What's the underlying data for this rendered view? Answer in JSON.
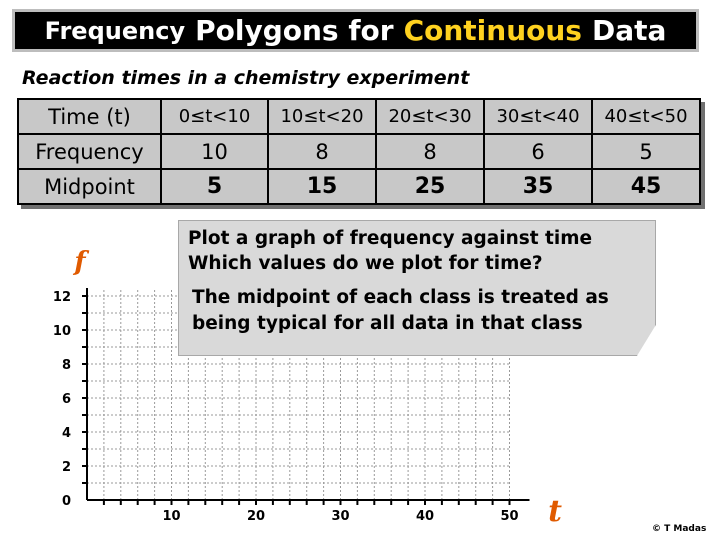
{
  "title": {
    "part1": "Frequency",
    "part2": "Polygons for",
    "part3": "Continuous",
    "part4": "Data"
  },
  "subtitle": "Reaction times in a chemistry experiment",
  "table": {
    "time_label": "Time (t)",
    "time_classes": [
      "0≤t<10",
      "10≤t<20",
      "20≤t<30",
      "30≤t<40",
      "40≤t<50"
    ],
    "frequency_label": "Frequency",
    "frequencies": [
      "10",
      "8",
      "8",
      "6",
      "5"
    ],
    "midpoint_label": "Midpoint",
    "midpoints": [
      "5",
      "15",
      "25",
      "35",
      "45"
    ]
  },
  "note": {
    "line1": "Plot a graph of frequency against time",
    "line2": "Which values do we plot for time?",
    "line3": "The midpoint of each class is treated as",
    "line4": "being typical for all data in that class"
  },
  "chart_data": {
    "type": "line",
    "xlabel": "t",
    "ylabel": "f",
    "xlim": [
      0,
      50
    ],
    "ylim": [
      0,
      12
    ],
    "x_ticks": [
      "10",
      "20",
      "30",
      "40",
      "50"
    ],
    "y_ticks": [
      "0",
      "2",
      "4",
      "6",
      "8",
      "10",
      "12"
    ],
    "grid": true,
    "series": []
  },
  "copyright": "© T Madas",
  "colors": {
    "title_bg": "#000000",
    "title_text": "#ffffff",
    "title_highlight": "#ffd21f",
    "table_bg": "#c8c8c8",
    "note_bg": "#d9d9d9",
    "grid": "#9a9a9a"
  }
}
